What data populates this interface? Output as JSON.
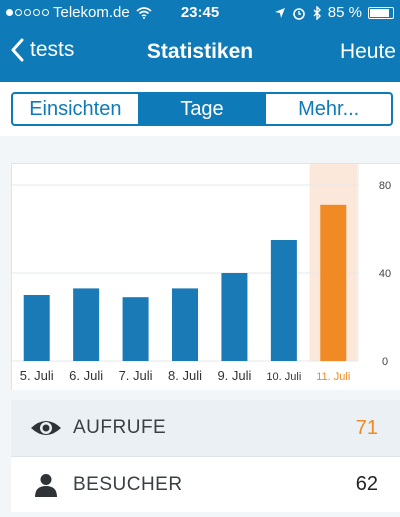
{
  "status_bar": {
    "carrier": "Telekom.de",
    "time": "23:45",
    "battery": "85 %",
    "battery_level": 0.85
  },
  "nav": {
    "back_label": "tests",
    "title": "Statistiken",
    "today_label": "Heute"
  },
  "segments": [
    {
      "label": "Einsichten",
      "active": false
    },
    {
      "label": "Tage",
      "active": true
    },
    {
      "label": "Mehr...",
      "active": false
    }
  ],
  "chart_data": {
    "type": "bar",
    "categories": [
      "5. Juli",
      "6. Juli",
      "7. Juli",
      "8. Juli",
      "9. Juli",
      "10. Juli",
      "11. Juli"
    ],
    "values": [
      30,
      33,
      29,
      33,
      40,
      55,
      71
    ],
    "yticks": [
      "80",
      "40",
      "0"
    ],
    "ylim": [
      0,
      80
    ],
    "highlighted_index": 6,
    "colors": {
      "bar": "#1a7ab5",
      "highlight": "#f08a24",
      "highlight_bg": "#fce8da"
    }
  },
  "stats": {
    "views": {
      "label": "AUFRUFE",
      "value": "71",
      "icon": "eye-icon",
      "value_color": "#f08a24"
    },
    "visitors": {
      "label": "BESUCHER",
      "value": "62",
      "icon": "person-icon",
      "value_color": "#222222"
    }
  }
}
